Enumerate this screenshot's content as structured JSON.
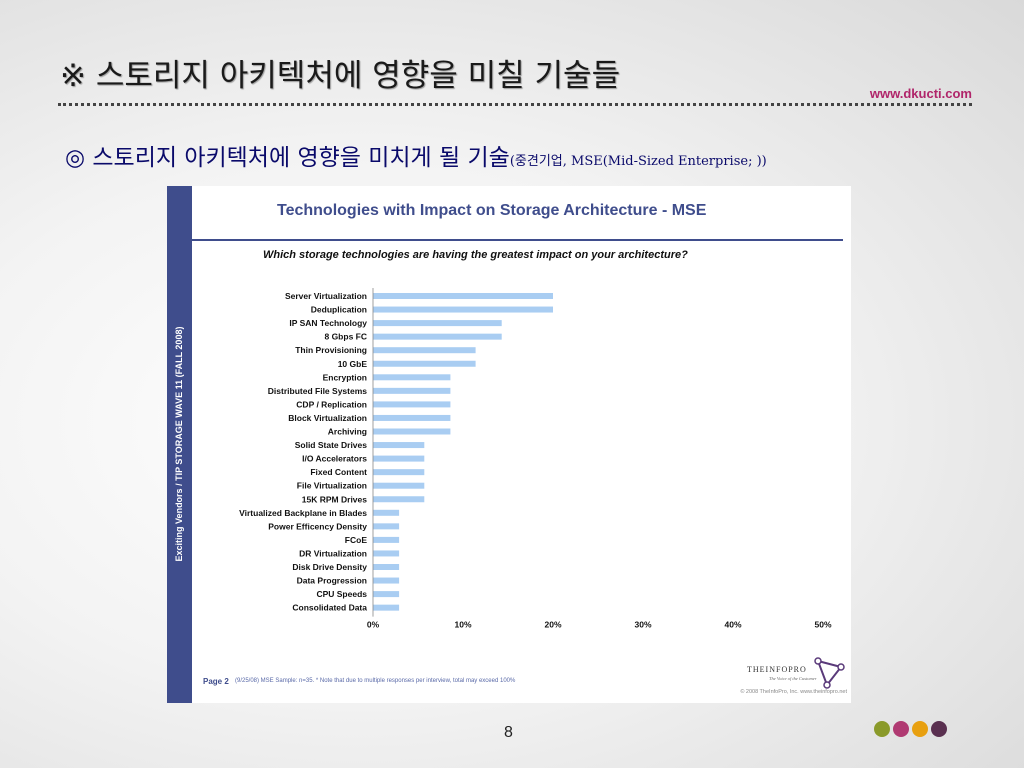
{
  "slide": {
    "title": "※ 스토리지 아키텍처에 영향을 미칠 기술들",
    "site": "www.dkucti.com",
    "subtitle_main": "◎ 스토리지 아키텍처에 영향을 미치게 될 기술",
    "subtitle_note": "(중견기업, MSE(Mid-Sized Enterprise; ))",
    "page_number": "8",
    "dot_colors": [
      "#8a9a2a",
      "#b03a72",
      "#e8a010",
      "#5a3050"
    ]
  },
  "figure": {
    "sidebar_text": "Exciting Vendors / TIP STORAGE WAVE 11 (FALL 2008)",
    "question": "Which storage technologies are having the greatest impact on your architecture?",
    "page_label": "Page 2",
    "footnote": "(9/25/08)  MSE Sample: n=35. * Note that due to multiple responses per interview, total may exceed 100%",
    "copyright": "© 2008 TheInfoPro, Inc. www.theinfopro.net",
    "logo_name": "THEINFOPRO",
    "logo_tagline": "The Voice of the Customer",
    "accent_color": "#3f4d8c",
    "bar_color": "#a9cdf2"
  },
  "chart_data": {
    "type": "bar",
    "orientation": "horizontal",
    "title": "Technologies with Impact on Storage Architecture - MSE",
    "categories": [
      "Server Virtualization",
      "Deduplication",
      "IP SAN Technology",
      "8 Gbps FC",
      "Thin Provisioning",
      "10 GbE",
      "Encryption",
      "Distributed File Systems",
      "CDP / Replication",
      "Block Virtualization",
      "Archiving",
      "Solid State Drives",
      "I/O Accelerators",
      "Fixed Content",
      "File Virtualization",
      "15K RPM Drives",
      "Virtualized Backplane in Blades",
      "Power Efficency Density",
      "FCoE",
      "DR Virtualization",
      "Disk Drive Density",
      "Data Progression",
      "CPU Speeds",
      "Consolidated Data"
    ],
    "values": [
      20.0,
      20.0,
      14.3,
      14.3,
      11.4,
      11.4,
      8.6,
      8.6,
      8.6,
      8.6,
      8.6,
      5.7,
      5.7,
      5.7,
      5.7,
      5.7,
      2.9,
      2.9,
      2.9,
      2.9,
      2.9,
      2.9,
      2.9,
      2.9
    ],
    "xlim": [
      0,
      50
    ],
    "xticks": [
      "0%",
      "10%",
      "20%",
      "30%",
      "40%",
      "50%"
    ],
    "xlabel": "",
    "ylabel": "",
    "grid": false
  }
}
